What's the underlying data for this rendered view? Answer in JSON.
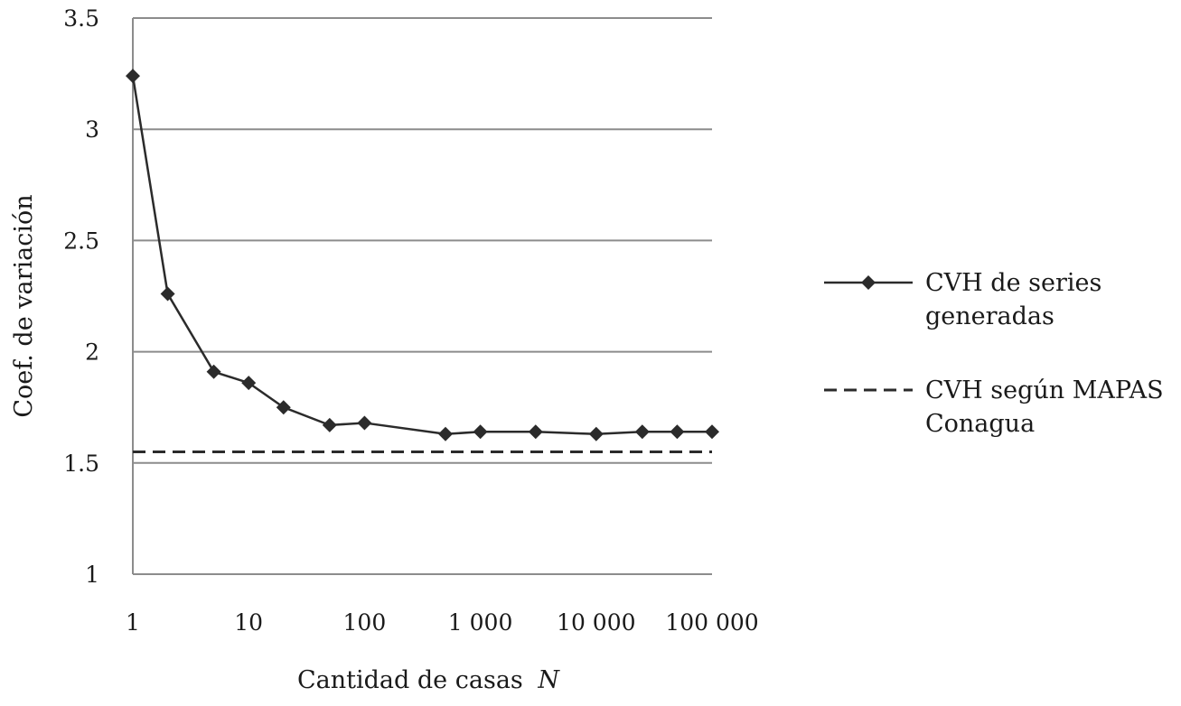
{
  "chart_data": {
    "type": "line",
    "xlabel_prefix": "Cantidad de casas",
    "xlabel_var": "N",
    "ylabel": "Coef. de variación",
    "x_scale": "log",
    "ylim": [
      1,
      3.5
    ],
    "yticks": [
      1,
      1.5,
      2,
      2.5,
      3,
      3.5
    ],
    "ytick_labels": [
      "1",
      "1.5",
      "2",
      "2.5",
      "3",
      "3.5"
    ],
    "xtick_labels": [
      "1",
      "10",
      "100",
      "1 000",
      "10 000",
      "100 000"
    ],
    "grid": "horizontal",
    "legend_position": "right",
    "series": [
      {
        "name": "CVH de series generadas",
        "label_lines": [
          "CVH de series",
          "generadas"
        ],
        "style": "solid",
        "marker": "diamond",
        "color": "#2b2b2b",
        "x": [
          1,
          2,
          5,
          10,
          20,
          50,
          100,
          500,
          1000,
          3000,
          10000,
          25000,
          50000,
          100000
        ],
        "y": [
          3.24,
          2.26,
          1.91,
          1.86,
          1.75,
          1.67,
          1.68,
          1.63,
          1.64,
          1.64,
          1.63,
          1.64,
          1.64,
          1.64
        ]
      },
      {
        "name": "CVH según MAPAS Conagua",
        "label_lines": [
          "CVH según MAPAS",
          "Conagua"
        ],
        "style": "dashed",
        "color": "#2b2b2b",
        "value": 1.55
      }
    ]
  }
}
